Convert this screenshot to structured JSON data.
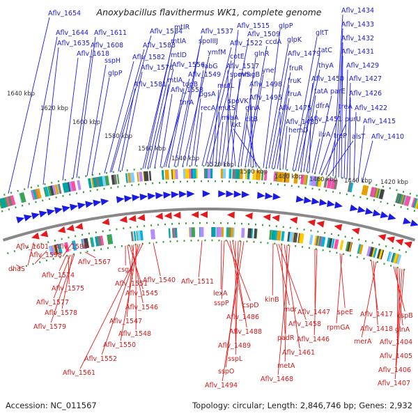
{
  "title": "Anoxybacillus flavithermus WK1, complete genome",
  "footer": {
    "accession": "Accession: NC_011567",
    "topology": "Topology: circular; Length: 2,846,746 bp; Genes: 2,932"
  },
  "colors": {
    "forward": "#1a1ae6",
    "reverse": "#e61a1a",
    "label_forward": "#1a1acc",
    "label_reverse": "#cc1a1a",
    "backbone": "#888888",
    "tick_dots": "#3a9a3a"
  },
  "ticks": [
    "1640 kbp",
    "1620 kbp",
    "1600 kbp",
    "1580 kbp",
    "1560 kbp",
    "1540 kbp",
    "1520 kbp",
    "1500 kbp",
    "1480 kbp",
    "1460 kbp",
    "1440 kbp",
    "1420 kbp"
  ],
  "forward_labels": [
    "Aflv_1654",
    "Aflv_1644",
    "Aflv_1635",
    "Aflv_1618",
    "Aflv_1611",
    "Aflv_1608",
    "sspH",
    "glpP",
    "Aflv_1584",
    "Aflv_1583",
    "Aflv_1582",
    "Aflv_1576",
    "Aflv_1581",
    "mtlR",
    "mtlA",
    "mtlD",
    "Aflv_1556",
    "mtlA",
    "Aflv_1558",
    "Aflv_1549",
    "topB",
    "tnrA",
    "Aflv_1537",
    "spoIIIJ",
    "ymfM",
    "fabG",
    "pgsA",
    "recA",
    "Aflv_1522",
    "cotE",
    "spoVS",
    "mutL",
    "mutS",
    "miaA",
    "Aflv_1515",
    "Aflv_1509",
    "Aflv_1517",
    "mmgB",
    "spoVK",
    "glnA",
    "glnR",
    "ccdA",
    "yneI",
    "Aflv_1498",
    "Aflv_1495",
    "citB",
    "tkt",
    "glpP",
    "glpK",
    "Aflv_1479",
    "fruR",
    "fruK",
    "fruA",
    "Aflv_1475",
    "Aflv_1480",
    "hemD",
    "gltT",
    "tatC",
    "thyA",
    "Aflv_1450",
    "tatA",
    "dfrA",
    "Aflv_1451",
    "ilvA",
    "parE",
    "treA",
    "purU",
    "treP",
    "alsT",
    "Aflv_1434",
    "Aflv_1433",
    "Aflv_1432",
    "Aflv_1431",
    "Aflv_1429",
    "Aflv_1427",
    "Aflv_1426",
    "Aflv_1422",
    "Aflv_1415",
    "Aflv_1410"
  ],
  "reverse_labels": [
    "Aflv_1601",
    "Aflv_1598",
    "dhaS",
    "Aflv_1580",
    "Aflv_1574",
    "Aflv_1575",
    "Aflv_1577",
    "Aflv_1578",
    "Aflv_1579",
    "Aflv_1567",
    "csgA",
    "Aflv_1551",
    "Aflv_1545",
    "Aflv_1546",
    "Aflv_1547",
    "Aflv_1548",
    "Aflv_1550",
    "Aflv_1552",
    "Aflv_1561",
    "Aflv_1540",
    "Aflv_1511",
    "lexA",
    "sspP",
    "cspD",
    "Aflv_1486",
    "Aflv_1488",
    "Aflv_1489",
    "sspL",
    "sspO",
    "Aflv_1494",
    "kinB",
    "mdr",
    "Aflv_1458",
    "padR",
    "Aflv_1461",
    "metA",
    "Aflv_1468",
    "Aflv_1447",
    "Aflv_1446",
    "speE",
    "rpmGA",
    "Aflv_1417",
    "Aflv_1418",
    "merA",
    "cspB",
    "glnA",
    "Aflv_1404",
    "Aflv_1405",
    "Aflv_1406",
    "Aflv_1407"
  ]
}
